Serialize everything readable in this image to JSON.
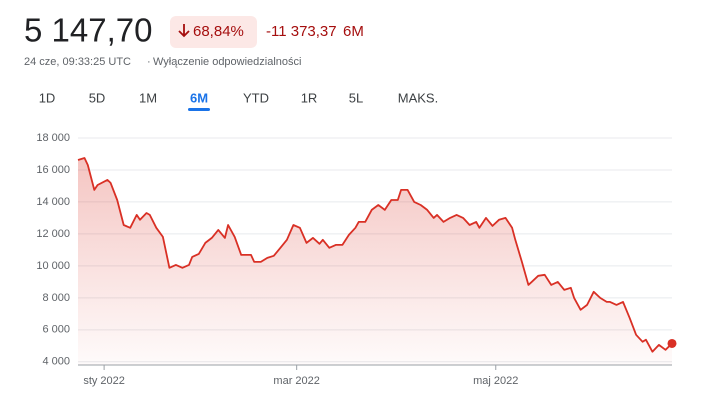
{
  "header": {
    "price": "5 147,70",
    "change_pct": "68,84%",
    "change_abs": "-11 373,37",
    "period": "6M",
    "timestamp": "24 cze, 09:33:25 UTC",
    "disclaimer": "Wyłączenie odpowiedzialności",
    "tabs": [
      "1D",
      "5D",
      "1M",
      "6M",
      "YTD",
      "1R",
      "5L",
      "MAKS."
    ],
    "active_tab": 3
  },
  "chart_data": {
    "type": "line",
    "x": [
      -8,
      -6,
      -5,
      -3,
      -2,
      1,
      2,
      4,
      6,
      8,
      10,
      11,
      13,
      14,
      16,
      18,
      20,
      22,
      24,
      26,
      27,
      29,
      31,
      33,
      35,
      37,
      38,
      40,
      42,
      45,
      46,
      48,
      50,
      52,
      54,
      56,
      58,
      60,
      62,
      64,
      66,
      67,
      69,
      71,
      73,
      75,
      77,
      78,
      80,
      82,
      84,
      86,
      88,
      90,
      91,
      93,
      95,
      97,
      99,
      101,
      102,
      104,
      106,
      108,
      110,
      112,
      114,
      115,
      117,
      119,
      121,
      123,
      125,
      126,
      128,
      130,
      131,
      133,
      135,
      137,
      139,
      141,
      143,
      144,
      146,
      148,
      150,
      152,
      154,
      155,
      157,
      159,
      161,
      163,
      165,
      166,
      168,
      170,
      172,
      174
    ],
    "series": [
      {
        "color": "#d93025",
        "values": [
          16620,
          16750,
          16310,
          14750,
          15060,
          15380,
          15190,
          14120,
          12560,
          12380,
          13190,
          12880,
          13310,
          13190,
          12380,
          11810,
          9880,
          10060,
          9880,
          10060,
          10560,
          10750,
          11440,
          11750,
          12250,
          11750,
          12560,
          11810,
          10690,
          10690,
          10250,
          10250,
          10500,
          10630,
          11130,
          11630,
          12560,
          12380,
          11440,
          11750,
          11380,
          11630,
          11130,
          11310,
          11310,
          11940,
          12380,
          12750,
          12750,
          13500,
          13810,
          13500,
          14120,
          14120,
          14750,
          14750,
          14000,
          13810,
          13500,
          13000,
          13190,
          12750,
          13000,
          13190,
          13000,
          12560,
          12750,
          12380,
          13000,
          12500,
          12880,
          13000,
          12380,
          11630,
          10250,
          8810,
          9000,
          9380,
          9440,
          8810,
          9000,
          8500,
          8630,
          8000,
          7250,
          7560,
          8380,
          8000,
          7750,
          7750,
          7560,
          7750,
          6750,
          5690,
          5250,
          5380,
          4630,
          5060,
          4750,
          5147.7
        ]
      }
    ],
    "xlim": [
      -8,
      174
    ],
    "xticks": [
      {
        "value": 0,
        "label": "sty 2022"
      },
      {
        "value": 59,
        "label": "mar 2022"
      },
      {
        "value": 120,
        "label": "maj 2022"
      }
    ],
    "ylim": [
      3800,
      19000
    ],
    "yticks": [
      {
        "value": 4000,
        "label": "4 000"
      },
      {
        "value": 6000,
        "label": "6 000"
      },
      {
        "value": 8000,
        "label": "8 000"
      },
      {
        "value": 10000,
        "label": "10 000"
      },
      {
        "value": 12000,
        "label": "12 000"
      },
      {
        "value": 14000,
        "label": "14 000"
      },
      {
        "value": 16000,
        "label": "16 000"
      },
      {
        "value": 18000,
        "label": "18 000"
      }
    ],
    "grid": true
  }
}
